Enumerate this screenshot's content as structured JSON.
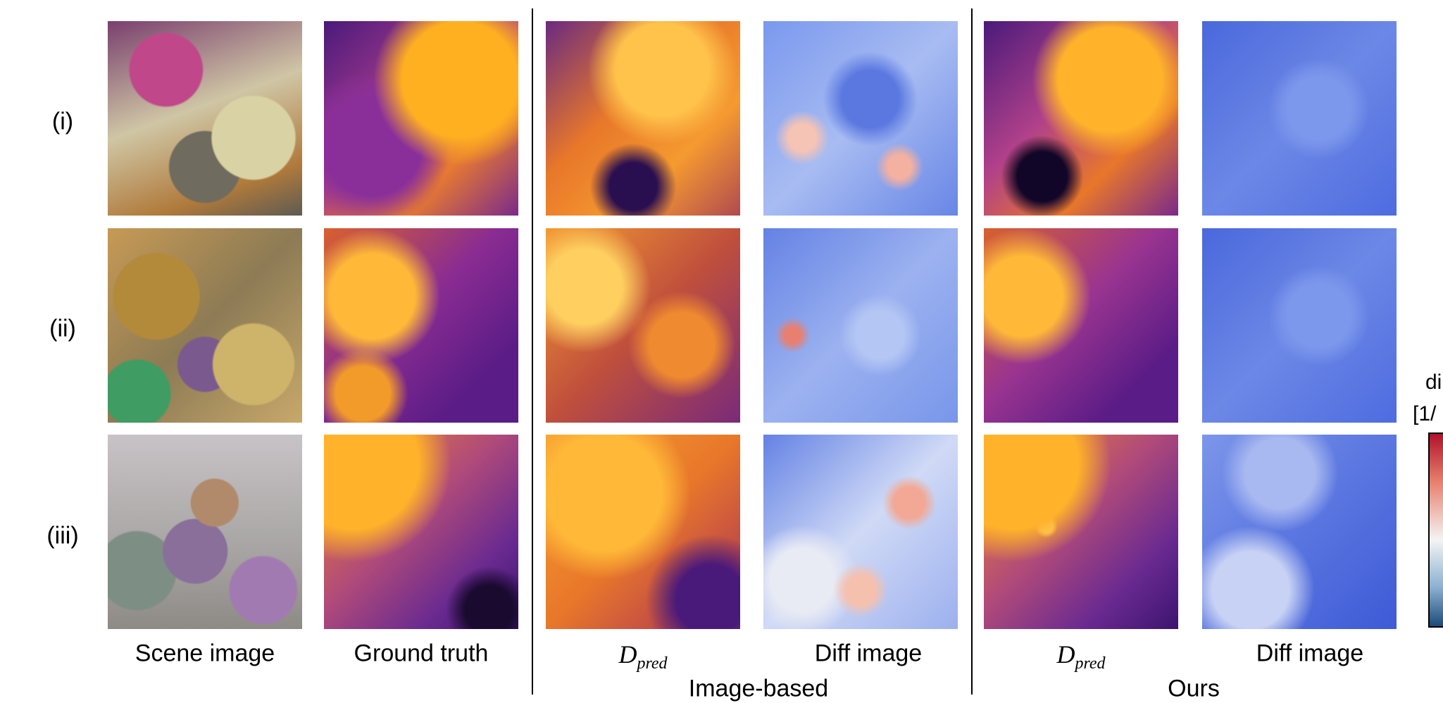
{
  "row_labels": [
    "(i)",
    "(ii)",
    "(iii)"
  ],
  "columns": [
    {
      "label": "Scene image"
    },
    {
      "label": "Ground truth"
    },
    {
      "symbol": "D",
      "subscript": "pred"
    },
    {
      "label": "Diff image"
    },
    {
      "symbol": "D",
      "subscript": "pred"
    },
    {
      "label": "Diff image"
    }
  ],
  "groups": [
    "Image-based",
    "Ours"
  ],
  "colorbar": {
    "title_lines": [
      "di",
      "[1/"
    ]
  }
}
